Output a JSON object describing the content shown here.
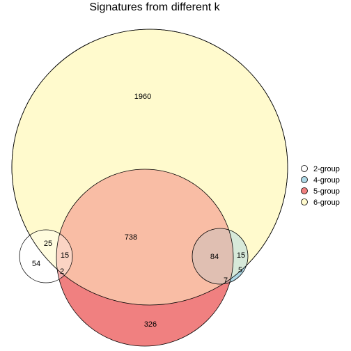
{
  "title": "Signatures from different k",
  "sets": [
    {
      "name": "2-group",
      "color": "#ffffff"
    },
    {
      "name": "4-group",
      "color": "#add8e6"
    },
    {
      "name": "5-group",
      "color": "#f08080"
    },
    {
      "name": "6-group",
      "color": "#fffacd"
    }
  ],
  "regions": {
    "six_only": "1960",
    "five_six": "738",
    "two_only": "54",
    "two_six": "25",
    "two_five_six": "15",
    "two_five": "2",
    "four_five_six": "84",
    "four_six": "15",
    "four_only": "5",
    "four_five": "7",
    "five_only": "326"
  }
}
